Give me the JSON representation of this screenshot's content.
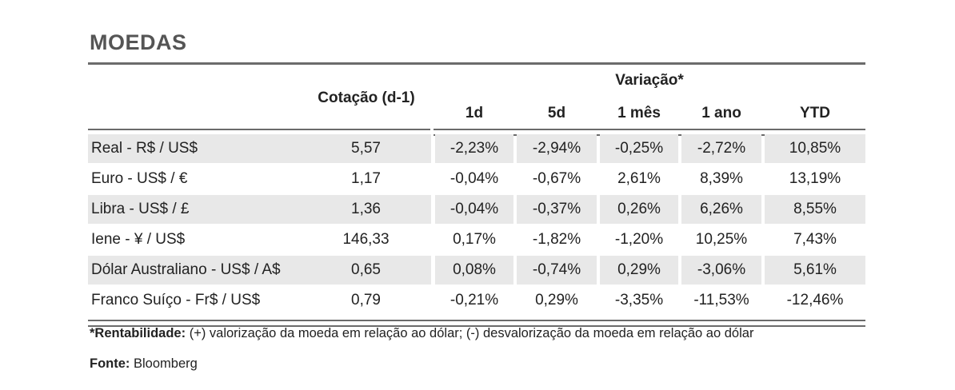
{
  "title": "MOEDAS",
  "header": {
    "cotacao": "Cotação (d-1)",
    "variacao": "Variação*",
    "periods": [
      "1d",
      "5d",
      "1 mês",
      "1 ano",
      "YTD"
    ]
  },
  "rows": [
    {
      "label": "Real - R$ / US$",
      "cotacao": "5,57",
      "d1": "-2,23%",
      "d5": "-2,94%",
      "m1": "-0,25%",
      "y1": "-2,72%",
      "ytd": "10,85%"
    },
    {
      "label": "Euro - US$ / €",
      "cotacao": "1,17",
      "d1": "-0,04%",
      "d5": "-0,67%",
      "m1": "2,61%",
      "y1": "8,39%",
      "ytd": "13,19%"
    },
    {
      "label": "Libra - US$ / £",
      "cotacao": "1,36",
      "d1": "-0,04%",
      "d5": "-0,37%",
      "m1": "0,26%",
      "y1": "6,26%",
      "ytd": "8,55%"
    },
    {
      "label": "Iene - ¥ / US$",
      "cotacao": "146,33",
      "d1": "0,17%",
      "d5": "-1,82%",
      "m1": "-1,20%",
      "y1": "10,25%",
      "ytd": "7,43%"
    },
    {
      "label": "Dólar Australiano - US$ / A$",
      "cotacao": "0,65",
      "d1": "0,08%",
      "d5": "-0,74%",
      "m1": "0,29%",
      "y1": "-3,06%",
      "ytd": "5,61%"
    },
    {
      "label": "Franco Suíço - Fr$ / US$",
      "cotacao": "0,79",
      "d1": "-0,21%",
      "d5": "0,29%",
      "m1": "-3,35%",
      "y1": "-11,53%",
      "ytd": "-12,46%"
    }
  ],
  "footnote": {
    "bold": "*Rentabilidade:",
    "text": " (+) valorização da moeda em relação ao dólar; (-) desvalorização da moeda em relação ao dólar"
  },
  "source": {
    "label": "Fonte:",
    "value": "Bloomberg"
  },
  "colors": {
    "rule": "#6b6b6b",
    "shade": "#e8e8e8",
    "title": "#555555"
  }
}
